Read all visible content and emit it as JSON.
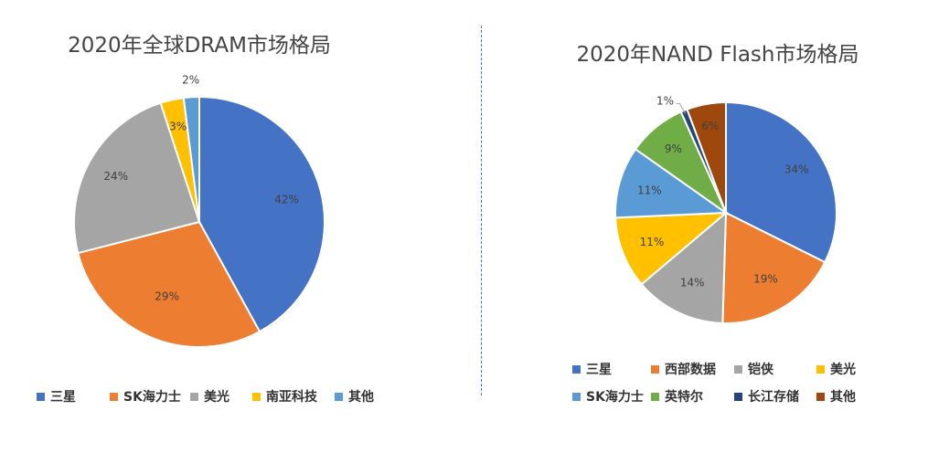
{
  "chart_data": [
    {
      "type": "pie",
      "title": "2020年全球DRAM市场格局",
      "categories": [
        "三星",
        "SK海力士",
        "美光",
        "南亚科技",
        "其他"
      ],
      "values": [
        42,
        29,
        24,
        3,
        2
      ],
      "labels": [
        "42%",
        "29%",
        "24%",
        "3%",
        "2%"
      ],
      "colors": [
        "#4472c4",
        "#ed7d31",
        "#a5a5a5",
        "#ffc000",
        "#5b9bd5"
      ],
      "legend": "bottom"
    },
    {
      "type": "pie",
      "title": "2020年NAND Flash市场格局",
      "categories": [
        "三星",
        "西部数据",
        "铠侠",
        "美光",
        "SK海力士",
        "英特尔",
        "长江存储",
        "其他"
      ],
      "values": [
        34,
        19,
        14,
        11,
        11,
        9,
        1,
        6
      ],
      "labels": [
        "34%",
        "19%",
        "14%",
        "11%",
        "11%",
        "9%",
        "1%",
        "6%"
      ],
      "colors": [
        "#4472c4",
        "#ed7d31",
        "#a5a5a5",
        "#ffc000",
        "#5b9bd5",
        "#70ad47",
        "#264478",
        "#9e480e"
      ],
      "legend": "bottom"
    }
  ]
}
